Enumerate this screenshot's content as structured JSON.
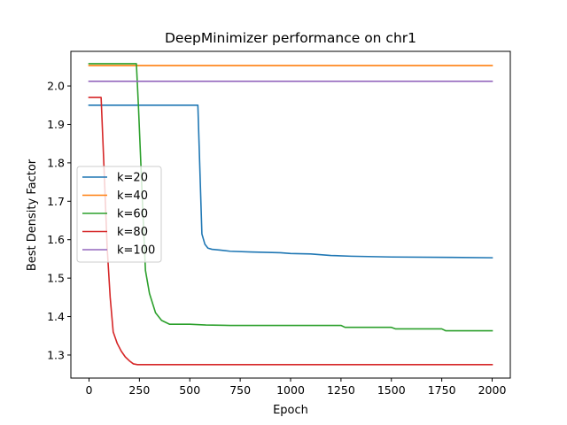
{
  "chart_data": {
    "type": "line",
    "title": "DeepMinimizer performance on chr1",
    "xlabel": "Epoch",
    "ylabel": "Best Density Factor",
    "xlim": [
      -90,
      2090
    ],
    "ylim": [
      1.24,
      2.09
    ],
    "xticks": [
      0,
      250,
      500,
      750,
      1000,
      1250,
      1500,
      1750,
      2000
    ],
    "xtick_labels": [
      "0",
      "250",
      "500",
      "750",
      "1000",
      "1250",
      "1500",
      "1750",
      "2000"
    ],
    "yticks": [
      1.3,
      1.4,
      1.5,
      1.6,
      1.7,
      1.8,
      1.9,
      2.0
    ],
    "ytick_labels": [
      "1.3",
      "1.4",
      "1.5",
      "1.6",
      "1.7",
      "1.8",
      "1.9",
      "2.0"
    ],
    "grid": false,
    "legend_position": "center-left",
    "series": [
      {
        "name": "k=20",
        "color": "#1f77b4",
        "x": [
          0,
          540,
          560,
          575,
          590,
          610,
          650,
          700,
          800,
          950,
          1000,
          1100,
          1200,
          1300,
          1500,
          1800,
          2000
        ],
        "y": [
          1.95,
          1.95,
          1.615,
          1.588,
          1.578,
          1.575,
          1.573,
          1.57,
          1.568,
          1.566,
          1.564,
          1.563,
          1.559,
          1.557,
          1.555,
          1.554,
          1.553
        ]
      },
      {
        "name": "k=40",
        "color": "#ff7f0e",
        "x": [
          0,
          2000
        ],
        "y": [
          2.053,
          2.053
        ]
      },
      {
        "name": "k=60",
        "color": "#2ca02c",
        "x": [
          0,
          235,
          245,
          265,
          280,
          300,
          330,
          360,
          400,
          500,
          580,
          700,
          1000,
          1250,
          1270,
          1500,
          1520,
          1750,
          1770,
          2000
        ],
        "y": [
          2.058,
          2.058,
          1.95,
          1.7,
          1.52,
          1.46,
          1.41,
          1.39,
          1.38,
          1.38,
          1.378,
          1.377,
          1.377,
          1.377,
          1.372,
          1.372,
          1.368,
          1.368,
          1.363,
          1.363
        ]
      },
      {
        "name": "k=80",
        "color": "#d62728",
        "x": [
          0,
          60,
          75,
          90,
          105,
          120,
          140,
          160,
          180,
          200,
          220,
          240,
          300,
          2000
        ],
        "y": [
          1.97,
          1.97,
          1.78,
          1.58,
          1.45,
          1.36,
          1.33,
          1.31,
          1.295,
          1.285,
          1.277,
          1.275,
          1.275,
          1.275
        ]
      },
      {
        "name": "k=100",
        "color": "#9467bd",
        "x": [
          0,
          2000
        ],
        "y": [
          2.012,
          2.012
        ]
      }
    ]
  }
}
